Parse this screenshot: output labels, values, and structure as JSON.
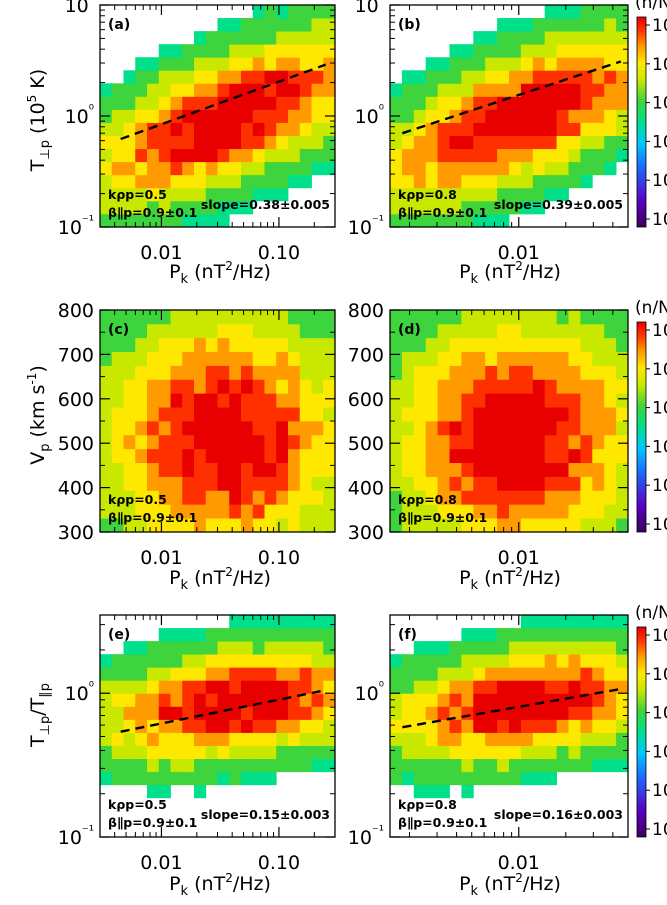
{
  "colorbar": {
    "title": "(n/N)",
    "tick_labels": [
      "10",
      "10",
      "10",
      "10",
      "10",
      "10"
    ]
  },
  "colors": {
    "colormap": [
      "#3b005a",
      "#5b00c0",
      "#1e66ff",
      "#00c8ff",
      "#00e08a",
      "#3ed43e",
      "#c8e800",
      "#ffe800",
      "#ff9a00",
      "#ff3000",
      "#e80000"
    ],
    "fit_line": "#000000"
  },
  "chart_data": [
    {
      "type": "heatmap",
      "panel": "(a)",
      "xlabel": "P_k (nT²/Hz)",
      "ylabel": "T⊥p (10⁵ K)",
      "yscale": "log",
      "xscale": "log",
      "ylim": [
        0.1,
        10
      ],
      "xlim": [
        0.003,
        0.3
      ],
      "xticks": [
        "0.01",
        "0.10"
      ],
      "yticks": [
        "10⁻¹",
        "10⁰",
        "10¹"
      ],
      "annotations": [
        "kρp=0.5",
        "β∥p=0.9±0.1",
        "slope=0.38±0.005"
      ],
      "fit": {
        "slope": 0.38,
        "x": [
          0.0045,
          0.25
        ],
        "y": [
          0.62,
          2.9
        ]
      }
    },
    {
      "type": "heatmap",
      "panel": "(b)",
      "xlabel": "P_k (nT²/Hz)",
      "yscale": "log",
      "xscale": "log",
      "ylim": [
        0.1,
        10
      ],
      "xlim": [
        0.0015,
        0.05
      ],
      "xticks": [
        "0.01"
      ],
      "yticks": [
        "10⁻¹",
        "10⁰",
        "10¹"
      ],
      "annotations": [
        "kρp=0.8",
        "β∥p=0.9±0.1",
        "slope=0.39±0.005"
      ],
      "fit": {
        "slope": 0.39,
        "x": [
          0.0018,
          0.045
        ],
        "y": [
          0.7,
          3.1
        ]
      }
    },
    {
      "type": "heatmap",
      "panel": "(c)",
      "xlabel": "P_k (nT²/Hz)",
      "ylabel": "Vp (km s⁻¹)",
      "xscale": "log",
      "ylim": [
        300,
        800
      ],
      "xlim": [
        0.003,
        0.3
      ],
      "xticks": [
        "0.01",
        "0.10"
      ],
      "yticks": [
        "300",
        "400",
        "500",
        "600",
        "700",
        "800"
      ],
      "annotations": [
        "kρp=0.5",
        "β∥p=0.9±0.1"
      ]
    },
    {
      "type": "heatmap",
      "panel": "(d)",
      "xlabel": "P_k (nT²/Hz)",
      "xscale": "log",
      "ylim": [
        300,
        800
      ],
      "xlim": [
        0.0015,
        0.05
      ],
      "xticks": [
        "0.01"
      ],
      "yticks": [
        "300",
        "400",
        "500",
        "600",
        "700",
        "800"
      ],
      "annotations": [
        "kρp=0.8",
        "β∥p=0.9±0.1"
      ]
    },
    {
      "type": "heatmap",
      "panel": "(e)",
      "xlabel": "P_k (nT²/Hz)",
      "ylabel": "T⊥p/T∥p",
      "yscale": "log",
      "xscale": "log",
      "ylim": [
        0.1,
        3.5
      ],
      "xlim": [
        0.003,
        0.3
      ],
      "xticks": [
        "0.01",
        "0.10"
      ],
      "yticks": [
        "10⁻¹",
        "10⁰"
      ],
      "annotations": [
        "kρp=0.5",
        "β∥p=0.9±0.1",
        "slope=0.15±0.003"
      ],
      "fit": {
        "slope": 0.15,
        "x": [
          0.0045,
          0.25
        ],
        "y": [
          0.54,
          1.05
        ]
      }
    },
    {
      "type": "heatmap",
      "panel": "(f)",
      "xlabel": "P_k (nT²/Hz)",
      "yscale": "log",
      "xscale": "log",
      "ylim": [
        0.1,
        3.5
      ],
      "xlim": [
        0.0015,
        0.05
      ],
      "xticks": [
        "0.01"
      ],
      "yticks": [
        "10⁻¹",
        "10⁰"
      ],
      "annotations": [
        "kρp=0.8",
        "β∥p=0.9±0.1",
        "slope=0.16±0.003"
      ],
      "fit": {
        "slope": 0.16,
        "x": [
          0.0018,
          0.045
        ],
        "y": [
          0.58,
          1.07
        ]
      }
    }
  ]
}
